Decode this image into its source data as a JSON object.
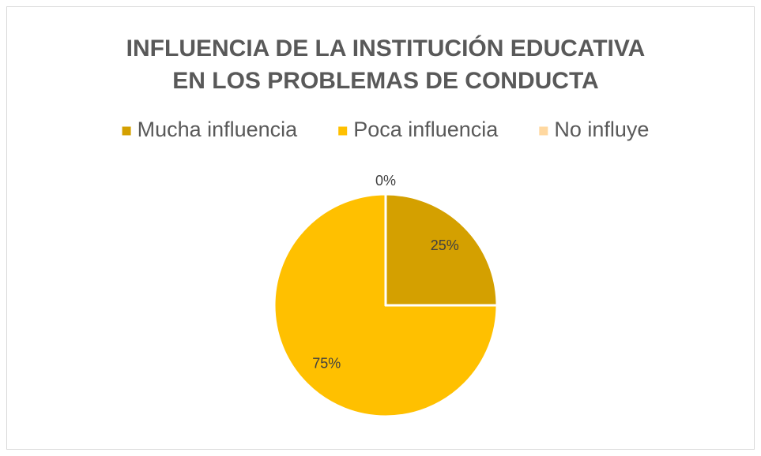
{
  "chart_data": {
    "type": "pie",
    "title": [
      "INFLUENCIA DE LA INSTITUCIÓN EDUCATIVA",
      "EN LOS PROBLEMAS DE CONDUCTA"
    ],
    "categories": [
      "Mucha influencia",
      "Poca influencia",
      "No influye"
    ],
    "values": [
      25,
      75,
      0
    ],
    "value_labels": [
      "25%",
      "75%",
      "0%"
    ],
    "colors": [
      "#d4a000",
      "#ffc000",
      "#ffd8a0"
    ],
    "legend": "top"
  }
}
